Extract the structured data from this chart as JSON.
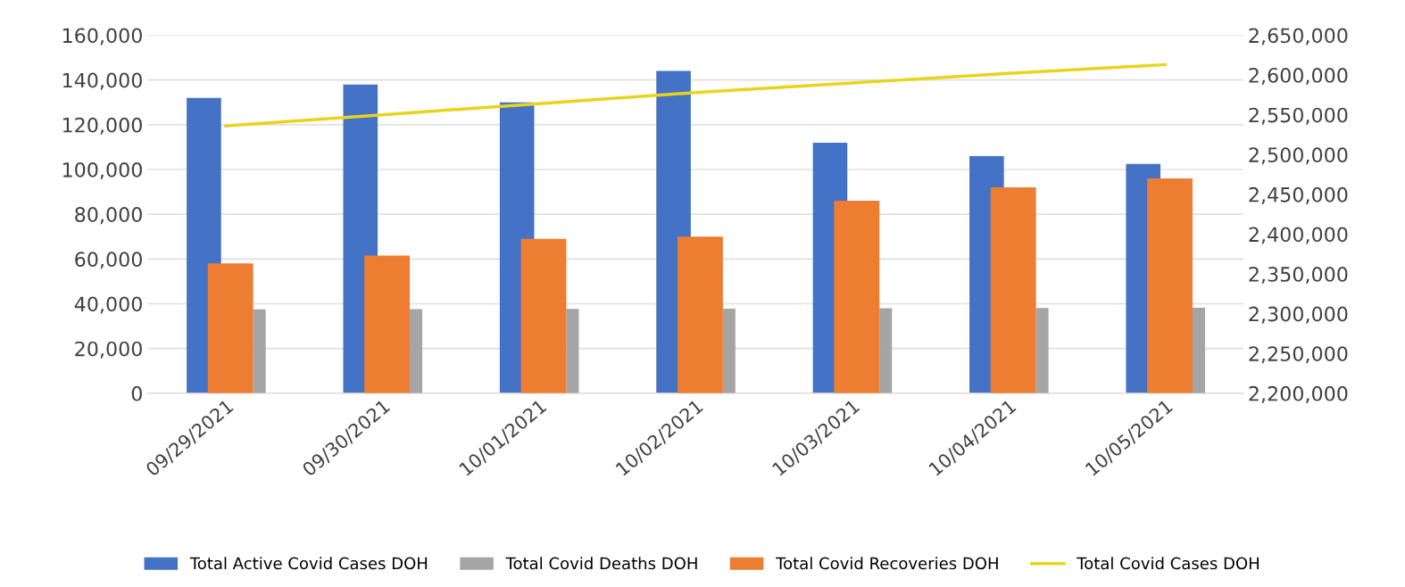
{
  "chart_data": {
    "type": "bar",
    "categories": [
      "09/29/2021",
      "09/30/2021",
      "10/01/2021",
      "10/02/2021",
      "10/03/2021",
      "10/04/2021",
      "10/05/2021"
    ],
    "series": [
      {
        "name": "Total Active Covid Cases DOH",
        "color": "#4472c4",
        "values": [
          132000,
          138000,
          130000,
          144000,
          112000,
          106000,
          102500
        ]
      },
      {
        "name": "Total Covid Deaths DOH",
        "color": "#a5a5a5",
        "values": [
          37500,
          37600,
          37700,
          37800,
          38000,
          38100,
          38200
        ]
      },
      {
        "name": "Total Covid Recoveries DOH",
        "color": "#ed7d31",
        "values": [
          58000,
          61500,
          69000,
          70000,
          86000,
          92000,
          96000
        ]
      },
      {
        "name": "Total Covid Cases DOH",
        "color": "#e8d41c",
        "type": "line",
        "axis": "y2",
        "values": [
          2536000,
          2550000,
          2564000,
          2578000,
          2590000,
          2602000,
          2613000
        ]
      }
    ],
    "ylim": [
      0,
      160000
    ],
    "yticks": [
      {
        "value": 0,
        "label": "0"
      },
      {
        "value": 20000,
        "label": "20,000"
      },
      {
        "value": 40000,
        "label": "40,000"
      },
      {
        "value": 60000,
        "label": "60,000"
      },
      {
        "value": 80000,
        "label": "80,000"
      },
      {
        "value": 100000,
        "label": "100,000"
      },
      {
        "value": 120000,
        "label": "120,000"
      },
      {
        "value": 140000,
        "label": "140,000"
      },
      {
        "value": 160000,
        "label": "160,000"
      }
    ],
    "y2lim": [
      2200000,
      2650000
    ],
    "y2ticks": [
      {
        "value": 2200000,
        "label": "2,200,000"
      },
      {
        "value": 2250000,
        "label": "2,250,000"
      },
      {
        "value": 2300000,
        "label": "2,300,000"
      },
      {
        "value": 2350000,
        "label": "2,350,000"
      },
      {
        "value": 2400000,
        "label": "2,400,000"
      },
      {
        "value": 2450000,
        "label": "2,450,000"
      },
      {
        "value": 2500000,
        "label": "2,500,000"
      },
      {
        "value": 2550000,
        "label": "2,550,000"
      },
      {
        "value": 2600000,
        "label": "2,600,000"
      },
      {
        "value": 2650000,
        "label": "2,650,000"
      }
    ],
    "grid": "y",
    "legend": "bottom",
    "marker": "none"
  }
}
